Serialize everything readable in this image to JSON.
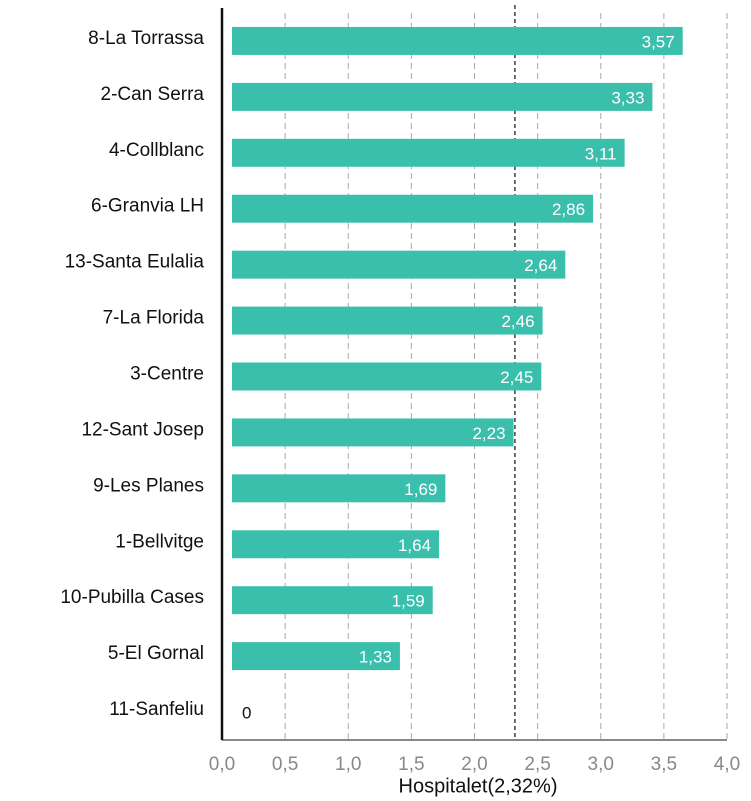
{
  "chart_data": {
    "type": "hbar",
    "categories": [
      "8-La Torrassa",
      "2-Can Serra",
      "4-Collblanc",
      "6-Granvia LH",
      "13-Santa Eulalia",
      "7-La Florida",
      "3-Centre",
      "12-Sant Josep",
      "9-Les Planes",
      "1-Bellvitge",
      "10-Pubilla Cases",
      "5-El Gornal",
      "11-Sanfeliu"
    ],
    "values": [
      3.57,
      3.33,
      3.11,
      2.86,
      2.64,
      2.46,
      2.45,
      2.23,
      1.69,
      1.64,
      1.59,
      1.33,
      0
    ],
    "value_labels": [
      "3,57",
      "3,33",
      "3,11",
      "2,86",
      "2,64",
      "2,46",
      "2,45",
      "2,23",
      "1,69",
      "1,64",
      "1,59",
      "1,33",
      "0"
    ],
    "color": "#3bbfad",
    "x_label": "Hospitalet(2,32%)",
    "reference_line": {
      "value": 2.32
    },
    "xlim": [
      0,
      4
    ],
    "xticks": [
      {
        "value": 0,
        "label": "0,0"
      },
      {
        "value": 0.5,
        "label": "0,5"
      },
      {
        "value": 1,
        "label": "1,0"
      },
      {
        "value": 1.5,
        "label": "1,5"
      },
      {
        "value": 2,
        "label": "2,0"
      },
      {
        "value": 2.5,
        "label": "2,5"
      },
      {
        "value": 3,
        "label": "3,0"
      },
      {
        "value": 3.5,
        "label": "3,5"
      },
      {
        "value": 4,
        "label": "4,0"
      }
    ],
    "grid": true
  }
}
